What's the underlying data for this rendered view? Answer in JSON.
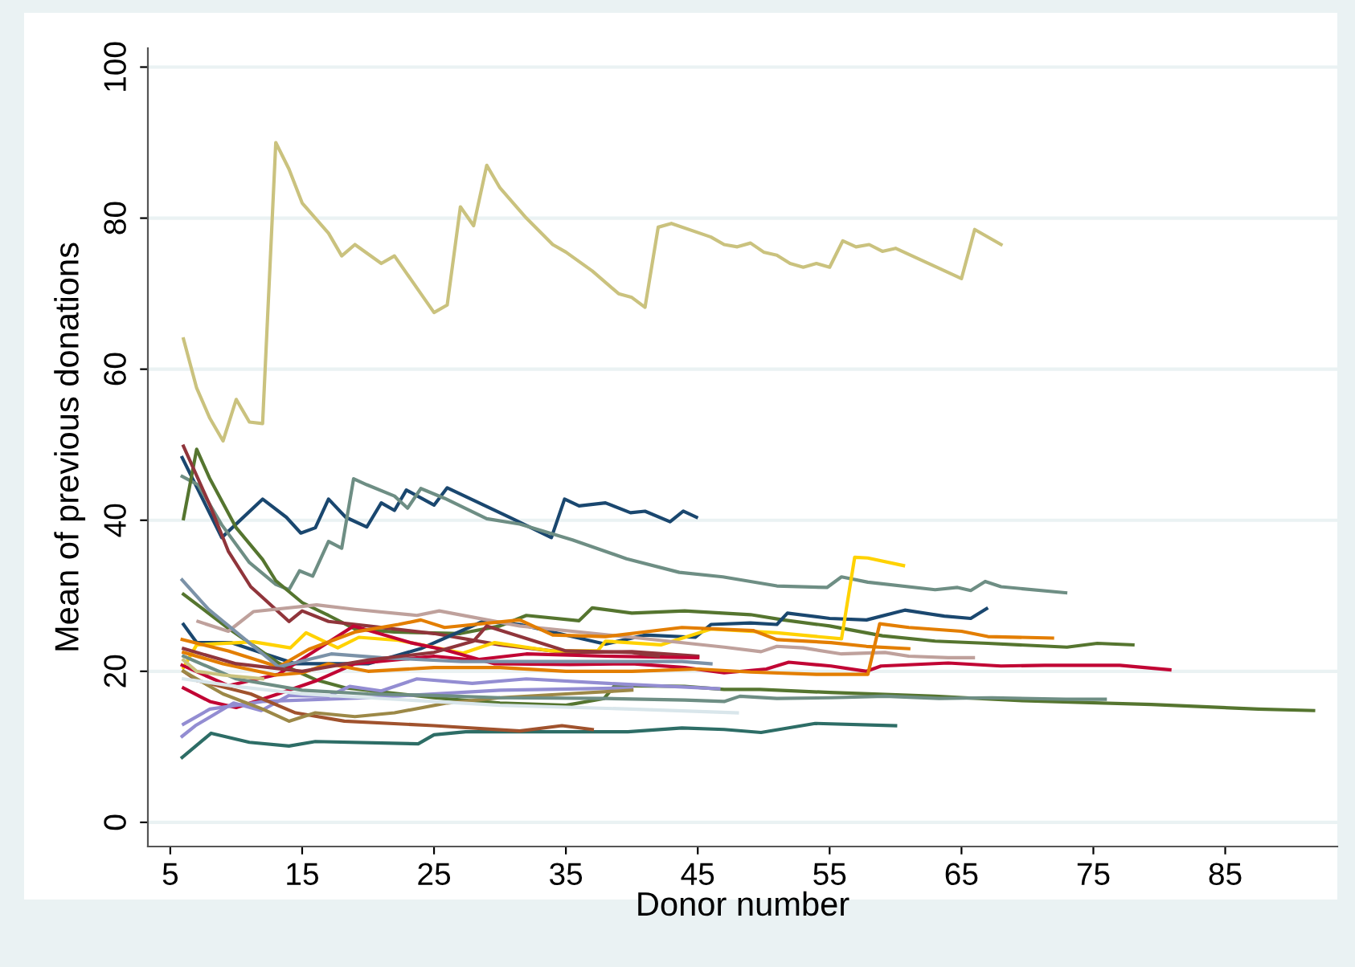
{
  "chart_data": {
    "type": "line",
    "xlabel": "Donor number",
    "ylabel": "Mean of previous donations",
    "xlim": [
      3.3,
      93.5
    ],
    "ylim": [
      -3.2,
      102.5
    ],
    "xticks": [
      5,
      15,
      25,
      35,
      45,
      55,
      65,
      75,
      85
    ],
    "yticks": [
      0,
      20,
      40,
      60,
      80,
      100
    ],
    "grid": "y",
    "marker": "none",
    "line_style": "solid",
    "series": [
      {
        "color": "#cac27e",
        "x": [
          6,
          7,
          8,
          9,
          10,
          11,
          12,
          13,
          14,
          15,
          16,
          17,
          18,
          19,
          21,
          22,
          24,
          25,
          26,
          27,
          28,
          29,
          30,
          32,
          34,
          35,
          37,
          39,
          40,
          41,
          42,
          43,
          46,
          47,
          48,
          49,
          50,
          51,
          52,
          53,
          54,
          55,
          56,
          57,
          58,
          59,
          60,
          65,
          66,
          68
        ],
        "values": [
          64,
          57.5,
          53.5,
          50.5,
          56,
          53,
          52.8,
          90,
          86.5,
          82,
          80,
          78,
          75,
          76.5,
          74,
          75,
          70,
          67.5,
          68.5,
          81.5,
          79,
          87,
          84,
          80,
          76.5,
          75.5,
          73,
          70,
          69.5,
          68.2,
          78.8,
          79.3,
          77.5,
          76.5,
          76.2,
          76.7,
          75.5,
          75.1,
          74,
          73.5,
          74,
          73.5,
          77,
          76.2,
          76.5,
          75.6,
          76,
          72,
          78.5,
          76.5
        ]
      },
      {
        "color": "#1a476f",
        "x": [
          5.9,
          8.9,
          12,
          13.8,
          14.9,
          16,
          17,
          18.3,
          19.9,
          21,
          22,
          22.9,
          25,
          26,
          30.7,
          33.9,
          34.9,
          36,
          38,
          39.9,
          41,
          42.9,
          43.9,
          44.9
        ],
        "values": [
          48.3,
          37.7,
          42.8,
          40.4,
          38.3,
          39,
          42.8,
          40.4,
          39.1,
          42.3,
          41.3,
          44,
          42,
          44.3,
          40.4,
          37.7,
          42.8,
          41.9,
          42.3,
          41,
          41.2,
          39.8,
          41.2,
          40.4
        ]
      },
      {
        "color": "#6e8e84",
        "x": [
          5.9,
          7.1,
          8.9,
          11,
          13,
          14,
          14.8,
          15.8,
          17,
          18,
          18.9,
          19.9,
          22,
          23,
          24,
          25.8,
          29,
          31.5,
          35.5,
          39.6,
          43.6,
          46.9,
          51,
          54.8,
          55.9,
          57.9,
          63,
          64.7,
          65.7,
          66.8,
          68,
          72.9
        ],
        "values": [
          45.8,
          44.7,
          39.4,
          34.4,
          31.5,
          30.8,
          33.3,
          32.6,
          37.2,
          36.3,
          45.5,
          44.7,
          43.2,
          41.6,
          44.2,
          42.9,
          40.2,
          39.5,
          37.4,
          34.9,
          33.1,
          32.5,
          31.3,
          31.1,
          32.5,
          31.8,
          30.8,
          31.1,
          30.7,
          31.9,
          31.2,
          30.4
        ]
      },
      {
        "color": "#55752f",
        "x": [
          6,
          7,
          8,
          10,
          12,
          13,
          15,
          17,
          19,
          22,
          27,
          30,
          32,
          36,
          37,
          40,
          44,
          49,
          51.5,
          55,
          59,
          63,
          67,
          73,
          75.3,
          78
        ],
        "values": [
          40.2,
          49.4,
          45.5,
          39,
          34.8,
          32,
          29.1,
          27.4,
          25.6,
          25.2,
          25,
          26,
          27.4,
          26.7,
          28.4,
          27.7,
          28,
          27.5,
          26.8,
          26,
          24.7,
          24,
          23.7,
          23.2,
          23.7,
          23.5
        ]
      },
      {
        "color": "#90353b",
        "x": [
          6,
          8,
          9.4,
          11.1,
          14,
          15,
          17,
          20,
          25,
          30,
          35,
          40,
          45
        ],
        "values": [
          49.8,
          42,
          35.9,
          31.2,
          26.6,
          28,
          26.6,
          26,
          25,
          23.5,
          22.5,
          22.6,
          22
        ]
      },
      {
        "color": "#1a476f",
        "x": [
          6,
          7,
          9.6,
          12,
          14.5,
          20,
          24,
          28.7,
          31.5,
          35,
          38,
          41,
          44.8,
          46,
          49,
          51,
          51.8,
          55,
          57.8,
          60.7,
          63.7,
          65.7,
          66.9
        ],
        "values": [
          26.2,
          23.8,
          23.8,
          22.4,
          21,
          21,
          23,
          26.6,
          26.2,
          24.8,
          23.6,
          24.8,
          24.5,
          26.2,
          26.4,
          26.2,
          27.7,
          27,
          26.8,
          28.1,
          27.3,
          27,
          28.3
        ]
      },
      {
        "color": "#55752f",
        "x": [
          6,
          9.4,
          13.2,
          16,
          18.3,
          25,
          30,
          35,
          37.9,
          38.7,
          44,
          47,
          49.7,
          55,
          63,
          69.6,
          79.4,
          87.5,
          91.7
        ],
        "values": [
          30.2,
          25.7,
          21.1,
          18.9,
          17.8,
          16.5,
          15.8,
          15.5,
          16.4,
          18.1,
          18,
          17.6,
          17.6,
          17.2,
          16.7,
          16.1,
          15.6,
          15,
          14.8
        ]
      },
      {
        "color": "#ffd200",
        "x": [
          6,
          7,
          11.3,
          14.1,
          15.3,
          17.7,
          19.3,
          22.3,
          27.2,
          29.6,
          33.9,
          37.4,
          38,
          42.2,
          46,
          51,
          55.9,
          56.9,
          57.9,
          60.6
        ],
        "values": [
          20.5,
          23.5,
          23.9,
          23.1,
          25.1,
          23.1,
          24.5,
          24.1,
          22.4,
          23.8,
          22.7,
          22.7,
          24,
          23.5,
          25.6,
          25.1,
          24.3,
          35.1,
          35,
          34
        ]
      },
      {
        "color": "#c10534",
        "x": [
          5.9,
          9.4,
          13.2,
          18.9,
          23.2,
          25.9,
          29.6,
          35.3,
          40,
          44,
          47,
          50.2,
          51.9,
          55.1,
          57.8,
          58.9,
          64,
          68,
          71.3,
          77,
          80.8
        ],
        "values": [
          20.8,
          18.1,
          19.6,
          26,
          23.8,
          22.8,
          21,
          20.9,
          21,
          20.5,
          19.8,
          20.3,
          21.2,
          20.7,
          20,
          20.7,
          21.1,
          20.7,
          20.8,
          20.8,
          20.2
        ]
      },
      {
        "color": "#c10534",
        "x": [
          6,
          8,
          10,
          13,
          16,
          19,
          22,
          25,
          28,
          32,
          38,
          45
        ],
        "values": [
          17.8,
          16,
          15.2,
          16.9,
          18.7,
          21,
          21.5,
          22,
          21.5,
          22.3,
          22,
          21.8
        ]
      },
      {
        "color": "#938dd2",
        "x": [
          5.9,
          6.9,
          9.8,
          11.9,
          14,
          17,
          18.6,
          21,
          23.7,
          27.9,
          32,
          38.2,
          46.6
        ],
        "values": [
          11.4,
          12.8,
          15.8,
          14.8,
          16.8,
          16.7,
          18,
          17.4,
          19,
          18.4,
          19,
          18.4,
          17.7
        ]
      },
      {
        "color": "#938dd2",
        "x": [
          6,
          8,
          12,
          20,
          30,
          40
        ],
        "values": [
          13,
          15,
          16,
          16.5,
          17.5,
          17.8
        ]
      },
      {
        "color": "#2d6d66",
        "x": [
          5.9,
          8.1,
          11,
          14,
          16,
          23.8,
          25,
          27.4,
          32.3,
          39.7,
          43.8,
          47,
          49.8,
          53.9,
          60
        ],
        "values": [
          8.6,
          11.8,
          10.6,
          10.1,
          10.7,
          10.4,
          11.6,
          12,
          12,
          12,
          12.5,
          12.3,
          11.9,
          13.1,
          12.8
        ]
      },
      {
        "color": "#a0522d",
        "x": [
          6,
          7,
          11.1,
          14.5,
          18.2,
          25,
          31.5,
          34.7,
          37
        ],
        "values": [
          20,
          18.8,
          17,
          14.5,
          13.4,
          12.8,
          12.1,
          12.8,
          12.3
        ]
      },
      {
        "color": "#9c8847",
        "x": [
          6,
          9,
          12,
          14,
          16,
          19,
          22,
          26,
          30,
          35,
          40
        ],
        "values": [
          20,
          17,
          15,
          13.4,
          14.5,
          14,
          14.5,
          15.8,
          16.5,
          17,
          17.5
        ]
      },
      {
        "color": "#bfa19c",
        "x": [
          7.1,
          9.4,
          11.3,
          16.1,
          19,
          23.7,
          25.4,
          31.5,
          40,
          47,
          49.8,
          51,
          53,
          55.9,
          59.2,
          61,
          64,
          65.9
        ],
        "values": [
          26.6,
          25.3,
          27.9,
          28.8,
          28.2,
          27.4,
          28,
          26,
          24.5,
          23.2,
          22.6,
          23.3,
          23.1,
          22.3,
          22.5,
          22,
          21.8,
          21.8
        ]
      },
      {
        "color": "#e37e00",
        "x": [
          5.9,
          9.4,
          13.2,
          15.5,
          19,
          22.3,
          24,
          25.8,
          31.5,
          34,
          38,
          43.8,
          49.2,
          51,
          55.1,
          57.8,
          61
        ],
        "values": [
          24.2,
          22.7,
          20.6,
          22.9,
          25.2,
          26.2,
          26.8,
          25.8,
          26.8,
          24.8,
          24.6,
          25.8,
          25.4,
          24.2,
          23.8,
          23.3,
          23
        ]
      },
      {
        "color": "#e37e00",
        "x": [
          6,
          9,
          13,
          15,
          17,
          20,
          25,
          30,
          35,
          40,
          45,
          49,
          54,
          57.9,
          58.8,
          61,
          65,
          67,
          71.9
        ],
        "values": [
          22.5,
          21,
          19.5,
          19.8,
          21,
          20,
          20.5,
          20.5,
          20,
          20,
          20.3,
          19.9,
          19.6,
          19.6,
          26.3,
          25.8,
          25.3,
          24.6,
          24.4
        ]
      },
      {
        "color": "#7b92a8",
        "x": [
          5.9,
          7.9,
          13.2,
          17.2,
          21,
          27.1,
          35.5,
          43.8,
          46
        ],
        "values": [
          32.1,
          28.2,
          20.6,
          22.3,
          21.8,
          21.3,
          21.3,
          21.3,
          21
        ]
      },
      {
        "color": "#d9e6eb",
        "x": [
          6,
          10,
          15,
          20,
          30,
          40,
          48
        ],
        "values": [
          19,
          18,
          17,
          16.5,
          15.5,
          15,
          14.5
        ]
      },
      {
        "color": "#6e8e84",
        "x": [
          6,
          10,
          15,
          20,
          25,
          30,
          38,
          44,
          47,
          48.2,
          51,
          55.1,
          59.2,
          63.3,
          67.3,
          72.9,
          75.9
        ],
        "values": [
          22,
          19,
          17.5,
          17,
          16.8,
          16.5,
          16.4,
          16.2,
          16,
          16.7,
          16.4,
          16.5,
          16.7,
          16.4,
          16.5,
          16.3,
          16.3
        ]
      },
      {
        "color": "#cac27e",
        "x": [
          6,
          7,
          9,
          12
        ],
        "values": [
          21.5,
          20,
          19.5,
          19
        ]
      },
      {
        "color": "#90353b",
        "x": [
          6,
          10,
          15,
          20,
          25,
          28,
          29,
          35,
          40,
          42
        ],
        "values": [
          23,
          21,
          20,
          21.5,
          22.5,
          24,
          26,
          22.7,
          22.5,
          22
        ]
      }
    ]
  }
}
